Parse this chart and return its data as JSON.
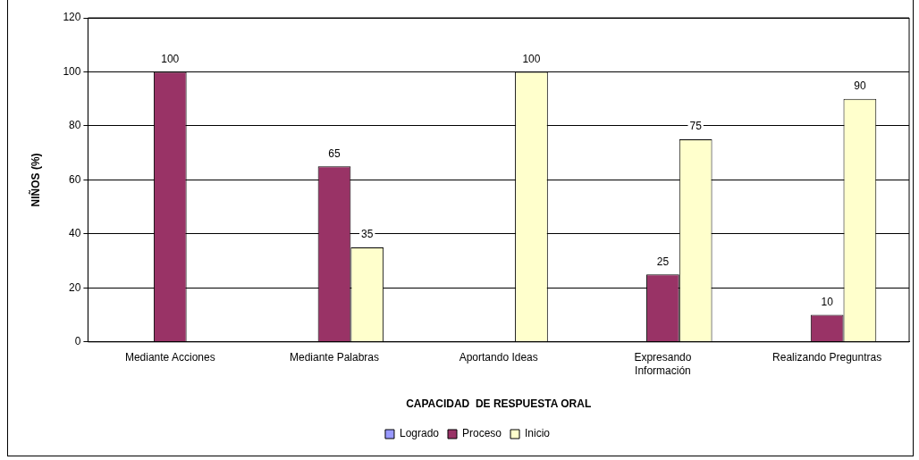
{
  "chart_data": {
    "type": "bar",
    "xlabel": "CAPACIDAD  DE RESPUESTA ORAL",
    "ylabel": "NIÑOS (%)",
    "categories": [
      "Mediante Acciones",
      "Mediante Palabras",
      "Aportando Ideas",
      "Expresando Información",
      "Realizando Preguntras"
    ],
    "series": [
      {
        "name": "Logrado",
        "color": "#9999ff",
        "values": [
          0,
          0,
          0,
          0,
          0
        ],
        "value_labels": [
          null,
          null,
          null,
          null,
          null
        ]
      },
      {
        "name": "Proceso",
        "color": "#993366",
        "values": [
          100,
          65,
          0,
          25,
          10
        ],
        "value_labels": [
          "100",
          "65",
          null,
          "25",
          "10"
        ]
      },
      {
        "name": "Inicio",
        "color": "#ffffcc",
        "values": [
          0,
          35,
          100,
          75,
          90
        ],
        "value_labels": [
          null,
          "35",
          "100",
          "75",
          "90"
        ]
      }
    ],
    "ylim": [
      0,
      120
    ],
    "yticks": [
      0,
      20,
      40,
      60,
      80,
      100,
      120
    ],
    "grid": "y",
    "legend": "bottom"
  }
}
